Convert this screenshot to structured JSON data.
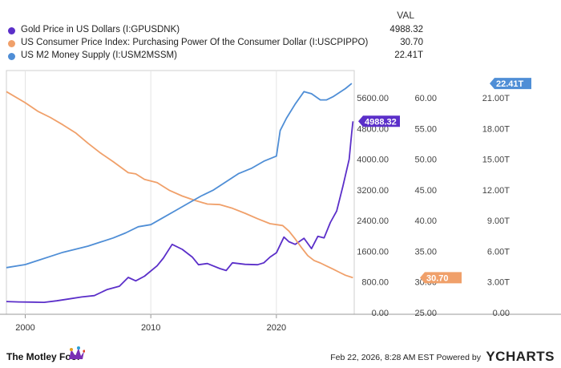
{
  "legend": {
    "header": "VAL",
    "items": [
      {
        "name": "Gold Price in US Dollars (I:GPUSDNK)",
        "value": "4988.32",
        "color": "#5b2fc9"
      },
      {
        "name": "US Consumer Price Index: Purchasing Power Of the Consumer Dollar (I:USCPIPPO)",
        "value": "30.70",
        "color": "#f0a06a"
      },
      {
        "name": "US M2 Money Supply (I:USM2MSSM)",
        "value": "22.41T",
        "color": "#4f8ed6"
      }
    ]
  },
  "footer": {
    "brand": "The Motley Fool",
    "timestamp": "Feb 22, 2026, 8:28 AM EST Powered by",
    "logo": "YCHARTS"
  },
  "chart_data": {
    "type": "line",
    "x_ticks": [
      "2000",
      "2010",
      "2020"
    ],
    "xlim": [
      1998.5,
      2026.2
    ],
    "axes": {
      "gold": {
        "ticks": [
          "0.00",
          "800.00",
          "1600.00",
          "2400.00",
          "3200.00",
          "4000.00",
          "4800.00",
          "5600.00"
        ],
        "ylim": [
          0,
          5600
        ]
      },
      "cpi": {
        "ticks": [
          "25.00",
          "30.00",
          "35.00",
          "40.00",
          "45.00",
          "50.00",
          "55.00",
          "60.00"
        ],
        "ylim": [
          25,
          60
        ]
      },
      "m2": {
        "ticks": [
          "0.00",
          "3.00T",
          "6.00T",
          "9.00T",
          "12.00T",
          "15.00T",
          "18.00T",
          "21.00T"
        ],
        "ylim": [
          0,
          21
        ]
      }
    },
    "end_labels": {
      "gold": "4988.32",
      "cpi": "30.70",
      "m2": "22.41T"
    },
    "series": [
      {
        "name": "Gold Price in US Dollars (I:GPUSDNK)",
        "axis": "gold",
        "color": "#5b2fc9",
        "points": [
          [
            1998.5,
            290
          ],
          [
            1999.5,
            280
          ],
          [
            2000.5,
            275
          ],
          [
            2001.5,
            270
          ],
          [
            2002.5,
            310
          ],
          [
            2003.5,
            360
          ],
          [
            2004.5,
            410
          ],
          [
            2005.5,
            445
          ],
          [
            2006.5,
            600
          ],
          [
            2007.5,
            690
          ],
          [
            2008.2,
            920
          ],
          [
            2008.8,
            830
          ],
          [
            2009.5,
            950
          ],
          [
            2010.5,
            1220
          ],
          [
            2011.0,
            1420
          ],
          [
            2011.7,
            1780
          ],
          [
            2012.5,
            1650
          ],
          [
            2013.3,
            1450
          ],
          [
            2013.8,
            1250
          ],
          [
            2014.5,
            1280
          ],
          [
            2015.5,
            1150
          ],
          [
            2016.0,
            1100
          ],
          [
            2016.5,
            1300
          ],
          [
            2017.5,
            1260
          ],
          [
            2018.5,
            1250
          ],
          [
            2019.0,
            1300
          ],
          [
            2019.5,
            1450
          ],
          [
            2020.0,
            1560
          ],
          [
            2020.6,
            1970
          ],
          [
            2021.0,
            1850
          ],
          [
            2021.5,
            1780
          ],
          [
            2022.2,
            1940
          ],
          [
            2022.8,
            1670
          ],
          [
            2023.3,
            1990
          ],
          [
            2023.8,
            1950
          ],
          [
            2024.3,
            2350
          ],
          [
            2024.8,
            2650
          ],
          [
            2025.3,
            3300
          ],
          [
            2025.8,
            4000
          ],
          [
            2026.0,
            4700
          ],
          [
            2026.1,
            4988.32
          ]
        ]
      },
      {
        "name": "US Consumer Price Index: Purchasing Power Of the Consumer Dollar (I:USCPIPPO)",
        "axis": "cpi",
        "color": "#f0a06a",
        "points": [
          [
            1998.5,
            61.0
          ],
          [
            2000.0,
            59.2
          ],
          [
            2001.0,
            57.8
          ],
          [
            2002.0,
            56.8
          ],
          [
            2003.0,
            55.6
          ],
          [
            2004.0,
            54.3
          ],
          [
            2005.0,
            52.6
          ],
          [
            2006.0,
            51.0
          ],
          [
            2007.0,
            49.6
          ],
          [
            2008.2,
            47.8
          ],
          [
            2008.8,
            47.6
          ],
          [
            2009.5,
            46.7
          ],
          [
            2010.5,
            46.2
          ],
          [
            2011.5,
            44.9
          ],
          [
            2012.5,
            44.0
          ],
          [
            2013.5,
            43.3
          ],
          [
            2014.5,
            42.7
          ],
          [
            2015.5,
            42.6
          ],
          [
            2016.5,
            42.0
          ],
          [
            2017.5,
            41.2
          ],
          [
            2018.5,
            40.3
          ],
          [
            2019.5,
            39.5
          ],
          [
            2020.5,
            39.2
          ],
          [
            2021.0,
            38.3
          ],
          [
            2021.5,
            37.0
          ],
          [
            2022.0,
            35.6
          ],
          [
            2022.5,
            34.3
          ],
          [
            2023.0,
            33.5
          ],
          [
            2023.5,
            33.1
          ],
          [
            2024.0,
            32.6
          ],
          [
            2024.5,
            32.1
          ],
          [
            2025.0,
            31.6
          ],
          [
            2025.5,
            31.1
          ],
          [
            2026.1,
            30.7
          ]
        ]
      },
      {
        "name": "US M2 Money Supply (I:USM2MSSM)",
        "axis": "m2",
        "color": "#4f8ed6",
        "points": [
          [
            1998.5,
            4.4
          ],
          [
            2000.0,
            4.7
          ],
          [
            2001.0,
            5.1
          ],
          [
            2002.0,
            5.5
          ],
          [
            2003.0,
            5.9
          ],
          [
            2004.0,
            6.2
          ],
          [
            2005.0,
            6.5
          ],
          [
            2006.0,
            6.9
          ],
          [
            2007.0,
            7.3
          ],
          [
            2008.0,
            7.8
          ],
          [
            2009.0,
            8.4
          ],
          [
            2010.0,
            8.6
          ],
          [
            2011.0,
            9.3
          ],
          [
            2012.0,
            10.0
          ],
          [
            2013.0,
            10.7
          ],
          [
            2014.0,
            11.4
          ],
          [
            2015.0,
            12.0
          ],
          [
            2016.0,
            12.8
          ],
          [
            2017.0,
            13.6
          ],
          [
            2018.0,
            14.1
          ],
          [
            2019.0,
            14.8
          ],
          [
            2020.0,
            15.3
          ],
          [
            2020.3,
            17.8
          ],
          [
            2020.8,
            19.0
          ],
          [
            2021.5,
            20.4
          ],
          [
            2022.2,
            21.6
          ],
          [
            2022.8,
            21.4
          ],
          [
            2023.5,
            20.8
          ],
          [
            2024.0,
            20.8
          ],
          [
            2024.5,
            21.1
          ],
          [
            2025.0,
            21.5
          ],
          [
            2025.5,
            21.9
          ],
          [
            2026.0,
            22.4
          ]
        ]
      }
    ]
  }
}
